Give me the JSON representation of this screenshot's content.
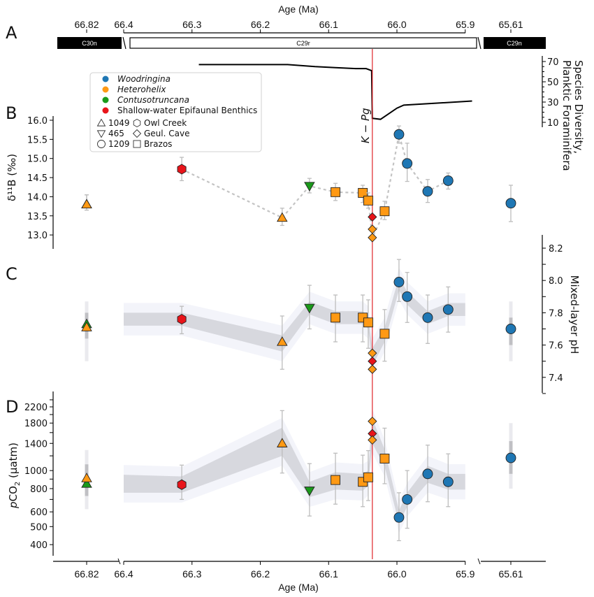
{
  "chart_data": {
    "type": "scatter",
    "title": "",
    "xlabel": "Age (Ma)",
    "x_axis": {
      "break_left_tick": "66.82",
      "main_range": [
        66.4,
        65.9
      ],
      "main_ticks": [
        "66.4",
        "66.3",
        "66.2",
        "66.1",
        "66.0",
        "65.9"
      ],
      "break_right_tick": "65.61",
      "axis_breaks": [
        "between 66.82 and 66.4",
        "between 65.9 and 65.61"
      ]
    },
    "boundary": {
      "label": "K − Pg",
      "age": 66.036,
      "color": "#e0242a"
    },
    "panels": {
      "A": {
        "letter": "A",
        "chrons": [
          {
            "name": "C30n",
            "polarity": "normal"
          },
          {
            "name": "C29r",
            "polarity": "reversed"
          },
          {
            "name": "C29n",
            "polarity": "normal"
          }
        ],
        "diversity": {
          "ylabel_line1": "Species Diversity,",
          "ylabel_line2": "Planktic Foraminifera",
          "ylim": [
            5,
            75
          ],
          "yticks": [
            "70",
            "50",
            "30",
            "10"
          ],
          "x": [
            66.29,
            66.16,
            66.12,
            66.09,
            66.06,
            66.045,
            66.037,
            66.036,
            66.024,
            66.0,
            65.99,
            65.89
          ],
          "y": [
            67,
            67,
            65,
            64,
            63,
            63,
            61,
            14,
            13,
            24,
            27,
            31
          ]
        }
      },
      "B": {
        "letter": "B",
        "ylabel": "δ¹¹B (‰)",
        "ylim": [
          12.65,
          16.0
        ],
        "yticks": [
          "16.0",
          "15.5",
          "15.0",
          "14.5",
          "14.0",
          "13.5",
          "13.0"
        ]
      },
      "C": {
        "letter": "C",
        "ylabel": "Mixed-layer pH",
        "ylim": [
          7.3,
          8.28
        ],
        "yticks": [
          "8.2",
          "8.0",
          "7.8",
          "7.6",
          "7.4"
        ]
      },
      "D": {
        "letter": "D",
        "ylabel_italic": "p",
        "ylabel_main": "CO",
        "ylabel_sub": "2",
        "ylabel_unit": " (µatm)",
        "ylim": [
          360,
          2500
        ],
        "yscale": "log",
        "yticks": [
          "2200",
          "1800",
          "1400",
          "1000",
          "800",
          "600",
          "500",
          "400"
        ]
      }
    },
    "legend": {
      "taxa": [
        {
          "name": "Woodringina",
          "color": "#1f77b4",
          "italic": true
        },
        {
          "name": "Heterohelix",
          "color": "#ff9914",
          "italic": true
        },
        {
          "name": "Contusotruncana",
          "color": "#1a9a1a",
          "italic": true
        },
        {
          "name": "Shallow-water Epifaunal Benthics",
          "color": "#e8141a",
          "italic": false
        }
      ],
      "sites": [
        {
          "marker": "triangle-up",
          "name": "1049"
        },
        {
          "marker": "triangle-down",
          "name": "465"
        },
        {
          "marker": "circle",
          "name": "1209"
        },
        {
          "marker": "hexagon",
          "name": "Owl Creek"
        },
        {
          "marker": "diamond",
          "name": "Geul. Cave"
        },
        {
          "marker": "square",
          "name": "Brazos"
        }
      ]
    },
    "series": [
      {
        "taxon": "Contusotruncana",
        "site": "1049",
        "age": 66.82,
        "d11B": 13.8,
        "d11B_err": [
          13.65,
          14.05
        ],
        "pH": 7.73,
        "pH_err": [
          7.55,
          7.87
        ],
        "pCO2": 850,
        "pCO2_err": [
          620,
          1290
        ]
      },
      {
        "taxon": "Heterohelix",
        "site": "1049",
        "age": 66.82,
        "d11B": 13.8,
        "d11B_err": [
          13.65,
          14.05
        ],
        "pH": 7.71,
        "pH_err": [
          7.55,
          7.87
        ],
        "pCO2": 910,
        "pCO2_err": [
          620,
          1290
        ]
      },
      {
        "taxon": "Shallow-water Epifaunal Benthics",
        "site": "Owl Creek",
        "age": 66.315,
        "d11B": 14.72,
        "d11B_err": [
          14.42,
          15.03
        ],
        "pH": 7.76,
        "pH_err": [
          7.67,
          7.84
        ],
        "pCO2": 840,
        "pCO2_err": [
          700,
          1070
        ]
      },
      {
        "taxon": "Heterohelix",
        "site": "1049",
        "age": 66.168,
        "d11B": 13.45,
        "d11B_err": [
          13.25,
          13.7
        ],
        "pH": 7.62,
        "pH_err": [
          7.45,
          7.78
        ],
        "pCO2": 1400,
        "pCO2_err": [
          970,
          2100
        ]
      },
      {
        "taxon": "Contusotruncana",
        "site": "465",
        "age": 66.128,
        "d11B": 14.28,
        "d11B_err": [
          14.1,
          14.48
        ],
        "pH": 7.83,
        "pH_err": [
          7.7,
          7.97
        ],
        "pCO2": 780,
        "pCO2_err": [
          570,
          1090
        ]
      },
      {
        "taxon": "Heterohelix",
        "site": "Brazos",
        "age": 66.09,
        "d11B": 14.12,
        "d11B_err": [
          13.9,
          14.35
        ],
        "pH": 7.77,
        "pH_err": [
          7.62,
          7.91
        ],
        "pCO2": 890,
        "pCO2_err": [
          660,
          1240
        ]
      },
      {
        "taxon": "Heterohelix",
        "site": "Brazos",
        "age": 66.05,
        "d11B": 14.1,
        "d11B_err": [
          13.85,
          14.3
        ],
        "pH": 7.77,
        "pH_err": [
          7.62,
          7.91
        ],
        "pCO2": 870,
        "pCO2_err": [
          640,
          1210
        ]
      },
      {
        "taxon": "Heterohelix",
        "site": "Brazos",
        "age": 66.042,
        "d11B": 13.9,
        "d11B_err": [
          13.7,
          14.1
        ],
        "pH": 7.74,
        "pH_err": [
          7.58,
          7.88
        ],
        "pCO2": 920,
        "pCO2_err": [
          690,
          1280
        ]
      },
      {
        "taxon": "Shallow-water Epifaunal Benthics",
        "site": "Geul. Cave",
        "age": 66.036,
        "d11B": 13.47,
        "pH": 7.5,
        "pCO2": 1580
      },
      {
        "taxon": "Heterohelix",
        "site": "Geul. Cave",
        "age": 66.036,
        "d11B": 13.15,
        "pH": 7.55,
        "pCO2": 1840
      },
      {
        "taxon": "Heterohelix",
        "site": "Geul. Cave",
        "age": 66.036,
        "d11B": 12.93,
        "pH": 7.45,
        "pCO2": 1460
      },
      {
        "taxon": "Heterohelix",
        "site": "Brazos",
        "age": 66.018,
        "d11B": 13.62,
        "d11B_err": [
          13.4,
          13.88
        ],
        "pH": 7.67,
        "pH_err": [
          7.5,
          7.82
        ],
        "pCO2": 1160,
        "pCO2_err": [
          850,
          1690
        ]
      },
      {
        "taxon": "Woodringina",
        "site": "1209",
        "age": 65.997,
        "d11B": 15.63,
        "d11B_err": [
          15.4,
          15.85
        ],
        "pH": 7.99,
        "pH_err": [
          7.87,
          8.13
        ],
        "pCO2": 560,
        "pCO2_err": [
          420,
          760
        ]
      },
      {
        "taxon": "Woodringina",
        "site": "1209",
        "age": 65.985,
        "d11B": 14.87,
        "d11B_err": [
          14.4,
          15.4
        ],
        "pH": 7.9,
        "pH_err": [
          7.74,
          8.05
        ],
        "pCO2": 700,
        "pCO2_err": [
          490,
          1000
        ]
      },
      {
        "taxon": "Woodringina",
        "site": "1209",
        "age": 65.955,
        "d11B": 14.14,
        "d11B_err": [
          13.85,
          14.45
        ],
        "pH": 7.77,
        "pH_err": [
          7.61,
          7.91
        ],
        "pCO2": 960,
        "pCO2_err": [
          680,
          1370
        ]
      },
      {
        "taxon": "Woodringina",
        "site": "1209",
        "age": 65.925,
        "d11B": 14.42,
        "d11B_err": [
          14.2,
          14.62
        ],
        "pH": 7.82,
        "pH_err": [
          7.68,
          7.96
        ],
        "pCO2": 870,
        "pCO2_err": [
          640,
          1230
        ]
      },
      {
        "taxon": "Woodringina",
        "site": "1209",
        "age": 65.61,
        "d11B": 13.83,
        "d11B_err": [
          13.35,
          14.3
        ],
        "pH": 7.7,
        "pH_err": [
          7.5,
          7.87
        ],
        "pCO2": 1170,
        "pCO2_err": [
          800,
          1800
        ]
      }
    ],
    "d11B_dashed_line_ages": [
      66.315,
      66.168,
      66.128,
      66.09,
      66.05,
      66.042,
      66.036,
      66.018,
      65.997,
      65.985,
      65.955,
      65.925
    ],
    "pH_envelope": {
      "ages": [
        66.4,
        66.315,
        66.168,
        66.128,
        66.09,
        66.05,
        66.042,
        66.036,
        66.018,
        65.997,
        65.985,
        65.955,
        65.925,
        65.9
      ],
      "upper": [
        7.8,
        7.8,
        7.66,
        7.87,
        7.81,
        7.81,
        7.78,
        7.58,
        7.71,
        8.02,
        7.93,
        7.81,
        7.86,
        7.86
      ],
      "lower": [
        7.72,
        7.72,
        7.56,
        7.79,
        7.73,
        7.73,
        7.7,
        7.47,
        7.62,
        7.94,
        7.85,
        7.73,
        7.78,
        7.78
      ]
    },
    "pCO2_envelope": {
      "ages": [
        66.4,
        66.315,
        66.168,
        66.128,
        66.09,
        66.05,
        66.042,
        66.036,
        66.018,
        65.997,
        65.985,
        65.955,
        65.925,
        65.9
      ],
      "upper": [
        950,
        930,
        1700,
        870,
        980,
        960,
        1000,
        1900,
        1300,
        610,
        760,
        1060,
        960,
        960
      ],
      "lower": [
        760,
        760,
        1200,
        720,
        790,
        780,
        830,
        1400,
        1050,
        520,
        640,
        860,
        790,
        790
      ]
    },
    "side_bars": {
      "pH": [
        {
          "age": 66.82,
          "outer": [
            7.5,
            7.87
          ],
          "inner": [
            7.64,
            7.8
          ]
        },
        {
          "age": 65.61,
          "outer": [
            7.5,
            7.87
          ],
          "inner": [
            7.6,
            7.77
          ]
        }
      ],
      "pCO2": [
        {
          "age": 66.82,
          "outer": [
            620,
            1290
          ],
          "inner": [
            730,
            1080
          ]
        },
        {
          "age": 65.61,
          "outer": [
            800,
            1800
          ],
          "inner": [
            960,
            1440
          ]
        }
      ]
    }
  }
}
